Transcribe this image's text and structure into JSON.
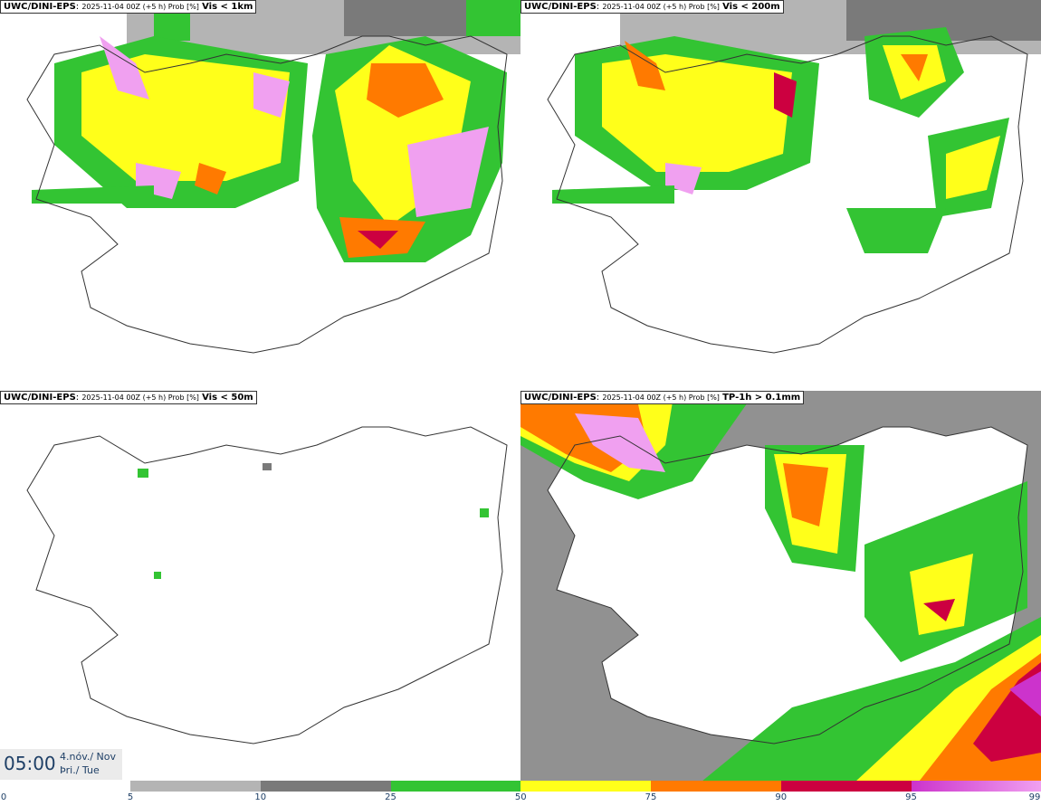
{
  "panels": [
    {
      "model": "UWC/DINI-EPS",
      "meta": "2025-11-04 00Z (+5 h) Prob [%]",
      "variable": "Vis < 1km"
    },
    {
      "model": "UWC/DINI-EPS",
      "meta": "2025-11-04 00Z (+5 h) Prob [%]",
      "variable": "Vis < 200m"
    },
    {
      "model": "UWC/DINI-EPS",
      "meta": "2025-11-04 00Z (+5 h) Prob [%]",
      "variable": "Vis < 50m"
    },
    {
      "model": "UWC/DINI-EPS",
      "meta": "2025-11-04 00Z (+5 h) Prob [%]",
      "variable": "TP-1h > 0.1mm"
    }
  ],
  "time": {
    "clock": "05:00",
    "date_line": "4.nóv./ Nov",
    "day_line": "Þri./ Tue"
  },
  "colorbar": {
    "levels": [
      "0",
      "5",
      "10",
      "25",
      "50",
      "75",
      "90",
      "95",
      "99"
    ],
    "colors": [
      "#ffffff",
      "#b4b4b4",
      "#7a7a7a",
      "#33c433",
      "#ffff1a",
      "#ff7a00",
      "#cc0040",
      "#cc33cc",
      "#f0a0f0"
    ]
  },
  "colors": {
    "coast": "#333333",
    "low": "#b4b4b4",
    "mid": "#7a7a7a",
    "green": "#33c433",
    "yellow": "#ffff1a",
    "orange": "#ff7a00",
    "red": "#cc0040",
    "magenta": "#cc33cc",
    "pink": "#f0a0f0"
  }
}
